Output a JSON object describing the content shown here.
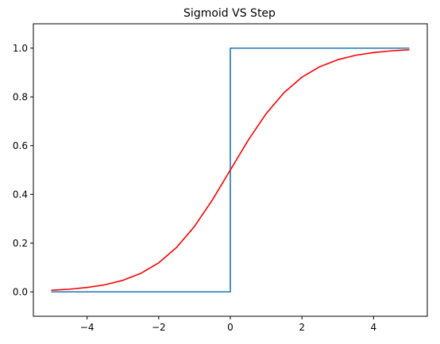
{
  "chart_data": {
    "type": "line",
    "title": "Sigmoid VS Step",
    "xlabel": "",
    "ylabel": "",
    "xlim": [
      -5.5,
      5.5
    ],
    "ylim": [
      -0.1,
      1.1
    ],
    "x_ticks": [
      -4,
      -2,
      0,
      2,
      4
    ],
    "x_tick_labels": [
      "−4",
      "−2",
      "0",
      "2",
      "4"
    ],
    "y_ticks": [
      0.0,
      0.2,
      0.4,
      0.6,
      0.8,
      1.0
    ],
    "y_tick_labels": [
      "0.0",
      "0.2",
      "0.4",
      "0.6",
      "0.8",
      "1.0"
    ],
    "grid": false,
    "legend": false,
    "series": [
      {
        "color": "#1f77b4",
        "x": [
          -5.0,
          0.0,
          0.0,
          5.0
        ],
        "y": [
          0.0,
          0.0,
          1.0,
          1.0
        ]
      },
      {
        "color": "#ff0000",
        "x": [
          -5.0,
          -4.5,
          -4.0,
          -3.5,
          -3.0,
          -2.5,
          -2.0,
          -1.5,
          -1.0,
          -0.5,
          0.0,
          0.5,
          1.0,
          1.5,
          2.0,
          2.5,
          3.0,
          3.5,
          4.0,
          4.5,
          5.0
        ],
        "y": [
          0.0067,
          0.011,
          0.018,
          0.0293,
          0.0474,
          0.0759,
          0.1192,
          0.1824,
          0.2689,
          0.3775,
          0.5,
          0.6225,
          0.7311,
          0.8176,
          0.8808,
          0.9241,
          0.9526,
          0.9707,
          0.982,
          0.989,
          0.9933
        ]
      }
    ]
  }
}
